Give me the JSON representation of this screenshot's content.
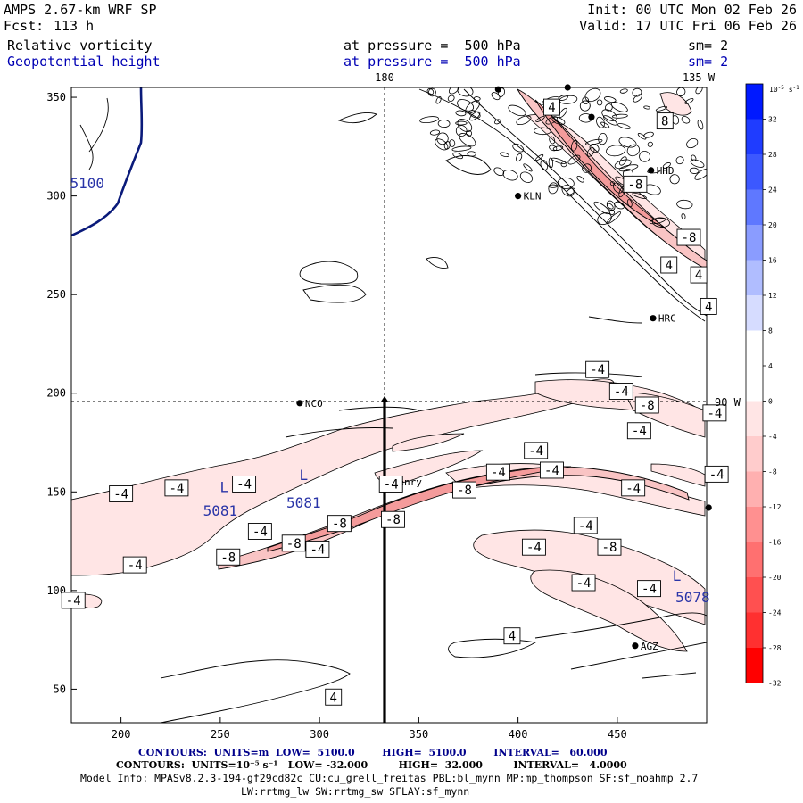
{
  "header": {
    "model": "AMPS 2.67-km WRF SP",
    "fcst_label": "Fcst:",
    "fcst_value": "113 h",
    "init": "Init: 00 UTC Mon 02 Feb 26",
    "valid": "Valid: 17 UTC Fri 06 Feb 26",
    "field1": {
      "name": "Relative vorticity",
      "level": "at pressure =  500 hPa",
      "sm": "sm= 2"
    },
    "field2": {
      "name": "Geopotential height",
      "level": "at pressure =  500 hPa",
      "sm": "sm= 2"
    }
  },
  "map_labels": {
    "top_180": "180",
    "top_135w": "135 W",
    "right_90w": "90 W"
  },
  "stations": [
    {
      "name": "NCO",
      "x": 290,
      "y": 195
    },
    {
      "name": "Henry",
      "x": 334,
      "y": 155
    },
    {
      "name": "KLN",
      "x": 400,
      "y": 300
    },
    {
      "name": "HHD",
      "x": 467,
      "y": 313
    },
    {
      "name": "HRC",
      "x": 468,
      "y": 238
    },
    {
      "name": "AGZ",
      "x": 459,
      "y": 72
    },
    {
      "name": "",
      "x": 496,
      "y": 142
    },
    {
      "name": "",
      "x": 390,
      "y": 354
    },
    {
      "name": "",
      "x": 425,
      "y": 355
    },
    {
      "name": "",
      "x": 437,
      "y": 340
    }
  ],
  "height_labels": [
    {
      "text": "5100",
      "x": 183,
      "y": 304
    },
    {
      "text": "L",
      "x": 252,
      "y": 150
    },
    {
      "text": "5081",
      "x": 250,
      "y": 138
    },
    {
      "text": "L",
      "x": 292,
      "y": 156
    },
    {
      "text": "5081",
      "x": 292,
      "y": 142
    },
    {
      "text": "L",
      "x": 480,
      "y": 105
    },
    {
      "text": "5078",
      "x": 488,
      "y": 94
    }
  ],
  "contour_labels": [
    {
      "text": "4",
      "x": 417,
      "y": 345
    },
    {
      "text": "8",
      "x": 474,
      "y": 338
    },
    {
      "text": "-8",
      "x": 459,
      "y": 306
    },
    {
      "text": "-8",
      "x": 486,
      "y": 279
    },
    {
      "text": "4",
      "x": 476,
      "y": 265
    },
    {
      "text": "4",
      "x": 491,
      "y": 260
    },
    {
      "text": "4",
      "x": 496,
      "y": 244
    },
    {
      "text": "-4",
      "x": 440,
      "y": 212
    },
    {
      "text": "-4",
      "x": 452,
      "y": 201
    },
    {
      "text": "-8",
      "x": 465,
      "y": 194
    },
    {
      "text": "-4",
      "x": 499,
      "y": 190
    },
    {
      "text": "-4",
      "x": 461,
      "y": 181
    },
    {
      "text": "-4",
      "x": 409,
      "y": 171
    },
    {
      "text": "-4",
      "x": 200,
      "y": 149
    },
    {
      "text": "-4",
      "x": 228,
      "y": 152
    },
    {
      "text": "-4",
      "x": 262,
      "y": 154
    },
    {
      "text": "-4",
      "x": 336,
      "y": 154
    },
    {
      "text": "-8",
      "x": 373,
      "y": 151
    },
    {
      "text": "-4",
      "x": 390,
      "y": 160
    },
    {
      "text": "-4",
      "x": 417,
      "y": 161
    },
    {
      "text": "-4",
      "x": 458,
      "y": 152
    },
    {
      "text": "-4",
      "x": 500,
      "y": 159
    },
    {
      "text": "-8",
      "x": 337,
      "y": 136
    },
    {
      "text": "-8",
      "x": 310,
      "y": 134
    },
    {
      "text": "-4",
      "x": 270,
      "y": 130
    },
    {
      "text": "-8",
      "x": 287,
      "y": 124
    },
    {
      "text": "-4",
      "x": 299,
      "y": 121
    },
    {
      "text": "-8",
      "x": 254,
      "y": 117
    },
    {
      "text": "-4",
      "x": 207,
      "y": 113
    },
    {
      "text": "-4",
      "x": 434,
      "y": 133
    },
    {
      "text": "-4",
      "x": 408,
      "y": 122
    },
    {
      "text": "-8",
      "x": 446,
      "y": 122
    },
    {
      "text": "-4",
      "x": 433,
      "y": 104
    },
    {
      "text": "-4",
      "x": 466,
      "y": 101
    },
    {
      "text": "-4",
      "x": 176,
      "y": 95
    },
    {
      "text": "4",
      "x": 397,
      "y": 77
    },
    {
      "text": "4",
      "x": 307,
      "y": 46
    }
  ],
  "chart_data": {
    "type": "contour",
    "title": "AMPS 2.67-km WRF SP — Relative vorticity and Geopotential height at 500 hPa",
    "xlabel": "",
    "ylabel": "",
    "xlim": [
      175,
      495
    ],
    "ylim": [
      33,
      355
    ],
    "xticks": [
      200,
      250,
      300,
      350,
      400,
      450
    ],
    "yticks": [
      50,
      100,
      150,
      200,
      250,
      300,
      350
    ],
    "reference_lines": {
      "vertical_x": 334,
      "horizontal_y": 196
    },
    "cross_section": {
      "x": 334,
      "y_from": 33,
      "y_to": 196
    },
    "series": [
      {
        "name": "Geopotential height (m)",
        "low": "5100.0",
        "high": "5100.0",
        "interval": "60.000"
      },
      {
        "name": "Relative vorticity (10^-5 s^-1)",
        "low": "-32.000",
        "high": "32.000",
        "interval": "4.0000"
      }
    ],
    "colorbar": {
      "unit": "10⁻⁵ s⁻¹",
      "levels": [
        "32",
        "28",
        "24",
        "20",
        "16",
        "12",
        "8",
        "4",
        "0",
        "-4",
        "-8",
        "-12",
        "-16",
        "-20",
        "-24",
        "-28",
        "-32"
      ],
      "colors": [
        "#0019ff",
        "#1f3cff",
        "#3c58ff",
        "#5f78ff",
        "#8a9cff",
        "#b0bdff",
        "#d6dcff",
        "#ffffff",
        "#ffffff",
        "#ffe5e5",
        "#ffcccc",
        "#ffb0b0",
        "#ff9090",
        "#ff7070",
        "#ff5050",
        "#ff3030",
        "#ff0000"
      ]
    }
  },
  "footer": {
    "line1": "CONTOURS:  UNITS=m  LOW=  5100.0        HIGH=  5100.0        INTERVAL=   60.000",
    "line2": "CONTOURS:  UNITS=10⁻⁵ s⁻¹   LOW= -32.000         HIGH=  32.000         INTERVAL=   4.0000",
    "line3": "Model Info: MPASv8.2.3-194-gf29cd82c CU:cu_grell_freitas PBL:bl_mynn MP:mp_thompson SF:sf_noahmp 2.7",
    "line4": "LW:rrtmg_lw SW:rrtmg_sw SFLAY:sf_mynn"
  },
  "colors": {
    "height_contour": "#0a1a7a",
    "vort_pos": "#000000",
    "vort_neg": "#f28b8b",
    "footer_blue": "#00008b"
  }
}
